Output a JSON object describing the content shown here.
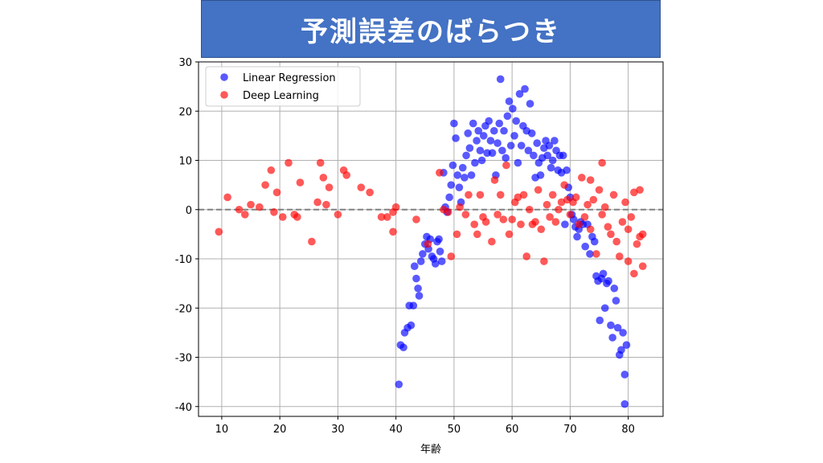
{
  "slide": {
    "title": "予測誤差のばらつき"
  },
  "colors": {
    "banner": "#4472c4",
    "linear": "#0000ff",
    "deep": "#ff0000",
    "zero_line": "#808080",
    "grid": "#b0b0b0"
  },
  "chart_data": {
    "type": "scatter",
    "title": "",
    "xlabel": "年齢",
    "ylabel": "",
    "xlim": [
      6,
      86
    ],
    "ylim": [
      -42,
      30
    ],
    "xticks": [
      10,
      20,
      30,
      40,
      50,
      60,
      70,
      80
    ],
    "yticks": [
      30,
      20,
      10,
      0,
      -10,
      -20,
      -30,
      -40
    ],
    "grid": true,
    "legend": "top-left",
    "reference_line": {
      "y": 0,
      "style": "dashed"
    },
    "series": [
      {
        "name": "Linear Regression",
        "color": "#0000ff",
        "points": [
          [
            40.5,
            -35.5
          ],
          [
            40.8,
            -27.5
          ],
          [
            41.3,
            -28
          ],
          [
            41.5,
            -25
          ],
          [
            42,
            -24
          ],
          [
            42.3,
            -19.5
          ],
          [
            42.6,
            -23.5
          ],
          [
            43,
            -19.5
          ],
          [
            43.2,
            -11.5
          ],
          [
            43.5,
            -14
          ],
          [
            43.8,
            -16
          ],
          [
            44,
            -17.5
          ],
          [
            44.3,
            -10.5
          ],
          [
            44.6,
            -9
          ],
          [
            45,
            -7
          ],
          [
            45.3,
            -5.5
          ],
          [
            45.6,
            -8
          ],
          [
            45.9,
            -6
          ],
          [
            46.2,
            -9.5
          ],
          [
            46.5,
            -10
          ],
          [
            46.8,
            -11
          ],
          [
            47.1,
            -6.5
          ],
          [
            47.4,
            -6
          ],
          [
            47.6,
            -8.5
          ],
          [
            47.9,
            -10.5
          ],
          [
            48.2,
            7.5
          ],
          [
            48.5,
            0.5
          ],
          [
            48.8,
            -0.5
          ],
          [
            49.2,
            2.5
          ],
          [
            49.5,
            5
          ],
          [
            49.8,
            9
          ],
          [
            50,
            17.5
          ],
          [
            50.3,
            14.5
          ],
          [
            50.6,
            7
          ],
          [
            50.9,
            4.5
          ],
          [
            51.2,
            1.5
          ],
          [
            51.5,
            8.5
          ],
          [
            51.8,
            6.5
          ],
          [
            52.1,
            11
          ],
          [
            52.4,
            15.5
          ],
          [
            52.7,
            12.5
          ],
          [
            53,
            7
          ],
          [
            53.3,
            17.5
          ],
          [
            53.6,
            9.5
          ],
          [
            53.9,
            14
          ],
          [
            54.2,
            16
          ],
          [
            54.5,
            12
          ],
          [
            54.8,
            10
          ],
          [
            55.1,
            15
          ],
          [
            55.4,
            17
          ],
          [
            55.7,
            11.5
          ],
          [
            56,
            18
          ],
          [
            56.3,
            14
          ],
          [
            56.6,
            11.5
          ],
          [
            56.9,
            16
          ],
          [
            57.2,
            7
          ],
          [
            57.5,
            13.5
          ],
          [
            57.8,
            17.5
          ],
          [
            58,
            26.5
          ],
          [
            58.3,
            12
          ],
          [
            58.6,
            16
          ],
          [
            58.9,
            10.5
          ],
          [
            59.2,
            19
          ],
          [
            59.5,
            22
          ],
          [
            59.8,
            13
          ],
          [
            60.1,
            20.5
          ],
          [
            60.4,
            15
          ],
          [
            60.7,
            18
          ],
          [
            61,
            9.5
          ],
          [
            61.3,
            23.5
          ],
          [
            61.6,
            13
          ],
          [
            61.9,
            17
          ],
          [
            62.2,
            24.5
          ],
          [
            62.5,
            16
          ],
          [
            62.8,
            12
          ],
          [
            63.1,
            21.5
          ],
          [
            63.4,
            15.5
          ],
          [
            63.7,
            11
          ],
          [
            64,
            6.5
          ],
          [
            64.3,
            13.5
          ],
          [
            64.6,
            9.5
          ],
          [
            64.9,
            7
          ],
          [
            65.2,
            10.5
          ],
          [
            65.5,
            12.5
          ],
          [
            65.8,
            14
          ],
          [
            66.1,
            11
          ],
          [
            66.4,
            13
          ],
          [
            66.7,
            8.5
          ],
          [
            67,
            10
          ],
          [
            67.3,
            14
          ],
          [
            67.6,
            12
          ],
          [
            67.9,
            8
          ],
          [
            68.2,
            11
          ],
          [
            68.5,
            7.5
          ],
          [
            68.8,
            11
          ],
          [
            69.1,
            -3
          ],
          [
            69.4,
            8
          ],
          [
            69.7,
            4.5
          ],
          [
            70,
            2.5
          ],
          [
            70.3,
            -1
          ],
          [
            70.6,
            -2
          ],
          [
            70.9,
            -3.5
          ],
          [
            71.2,
            -5.5
          ],
          [
            71.5,
            -4
          ],
          [
            71.8,
            -2.5
          ],
          [
            72.2,
            -3
          ],
          [
            72.6,
            -7.5
          ],
          [
            73,
            -3
          ],
          [
            73.4,
            -9
          ],
          [
            73.8,
            -5.5
          ],
          [
            74.2,
            -6.5
          ],
          [
            74.5,
            -13.5
          ],
          [
            74.8,
            -14.5
          ],
          [
            75.1,
            -22.5
          ],
          [
            75.4,
            -14
          ],
          [
            75.7,
            -13
          ],
          [
            76,
            -20
          ],
          [
            76.3,
            -15
          ],
          [
            76.6,
            -14.5
          ],
          [
            77,
            -23.5
          ],
          [
            77.3,
            -26
          ],
          [
            77.6,
            -16
          ],
          [
            77.9,
            -18.5
          ],
          [
            78.2,
            -24
          ],
          [
            78.5,
            -29.5
          ],
          [
            78.8,
            -28.5
          ],
          [
            79.1,
            -25
          ],
          [
            79.4,
            -33.5
          ],
          [
            79.4,
            -39.5
          ],
          [
            79.7,
            -27.5
          ]
        ]
      },
      {
        "name": "Deep Learning",
        "color": "#ff0000",
        "points": [
          [
            9.5,
            -4.5
          ],
          [
            11,
            2.5
          ],
          [
            13,
            0
          ],
          [
            14,
            -1
          ],
          [
            15,
            1
          ],
          [
            16.5,
            0.5
          ],
          [
            17.5,
            5
          ],
          [
            18.5,
            8
          ],
          [
            19,
            -0.5
          ],
          [
            19.5,
            3.5
          ],
          [
            20.5,
            -1.5
          ],
          [
            21.5,
            9.5
          ],
          [
            22.5,
            -1
          ],
          [
            23,
            -1.5
          ],
          [
            23.5,
            5.5
          ],
          [
            25.5,
            -6.5
          ],
          [
            26.5,
            1.5
          ],
          [
            27,
            9.5
          ],
          [
            27.5,
            6.5
          ],
          [
            28,
            1
          ],
          [
            28.5,
            4.5
          ],
          [
            30,
            -1
          ],
          [
            31,
            8
          ],
          [
            31.5,
            7
          ],
          [
            34,
            4.5
          ],
          [
            35.5,
            3.5
          ],
          [
            37.5,
            -1.5
          ],
          [
            38.5,
            -1.5
          ],
          [
            39.5,
            -0.5
          ],
          [
            39.5,
            -4.5
          ],
          [
            40,
            0.5
          ],
          [
            43.5,
            -2
          ],
          [
            45.5,
            -7
          ],
          [
            47.5,
            7.5
          ],
          [
            48.2,
            0
          ],
          [
            49,
            -0.5
          ],
          [
            49.5,
            -9.5
          ],
          [
            50.5,
            -5
          ],
          [
            51,
            0.5
          ],
          [
            52,
            -1
          ],
          [
            52.5,
            3
          ],
          [
            53.5,
            -3
          ],
          [
            54,
            -5
          ],
          [
            54.5,
            3
          ],
          [
            55,
            -1.5
          ],
          [
            55.5,
            -2.5
          ],
          [
            56.5,
            -6.5
          ],
          [
            57,
            6
          ],
          [
            57.5,
            -1
          ],
          [
            58,
            3
          ],
          [
            58.5,
            -2
          ],
          [
            59,
            9
          ],
          [
            59.5,
            -5
          ],
          [
            60,
            -2
          ],
          [
            60.5,
            1.5
          ],
          [
            61,
            2.5
          ],
          [
            61.5,
            -3
          ],
          [
            62,
            3
          ],
          [
            62.5,
            -9.5
          ],
          [
            63,
            0
          ],
          [
            63.5,
            -3
          ],
          [
            64,
            -2.5
          ],
          [
            64.5,
            4
          ],
          [
            65,
            -4
          ],
          [
            65.5,
            -10.5
          ],
          [
            66,
            1
          ],
          [
            66.5,
            -1.5
          ],
          [
            67,
            3
          ],
          [
            67.5,
            -2.5
          ],
          [
            68,
            0
          ],
          [
            68.5,
            1.5
          ],
          [
            69,
            5
          ],
          [
            69.5,
            2
          ],
          [
            70,
            -1
          ],
          [
            70.5,
            1.5
          ],
          [
            71,
            2.5
          ],
          [
            71.5,
            -3
          ],
          [
            72,
            6.5
          ],
          [
            72.5,
            -1.5
          ],
          [
            73,
            1
          ],
          [
            73.5,
            -4
          ],
          [
            73.5,
            6
          ],
          [
            74,
            2
          ],
          [
            74.5,
            -9
          ],
          [
            75,
            4
          ],
          [
            75.5,
            9.5
          ],
          [
            75.5,
            -1
          ],
          [
            76,
            0.5
          ],
          [
            76.5,
            -3.5
          ],
          [
            77,
            -5
          ],
          [
            77.5,
            3
          ],
          [
            78,
            -6.5
          ],
          [
            78.5,
            -9.5
          ],
          [
            79,
            -2.5
          ],
          [
            79.5,
            1.5
          ],
          [
            80,
            -4
          ],
          [
            80,
            -10.5
          ],
          [
            80.5,
            -1.5
          ],
          [
            81,
            -13
          ],
          [
            81,
            3.5
          ],
          [
            81.5,
            -7
          ],
          [
            82,
            -5.5
          ],
          [
            82,
            4
          ],
          [
            82.5,
            -11.5
          ],
          [
            82.5,
            -5
          ]
        ]
      }
    ]
  }
}
